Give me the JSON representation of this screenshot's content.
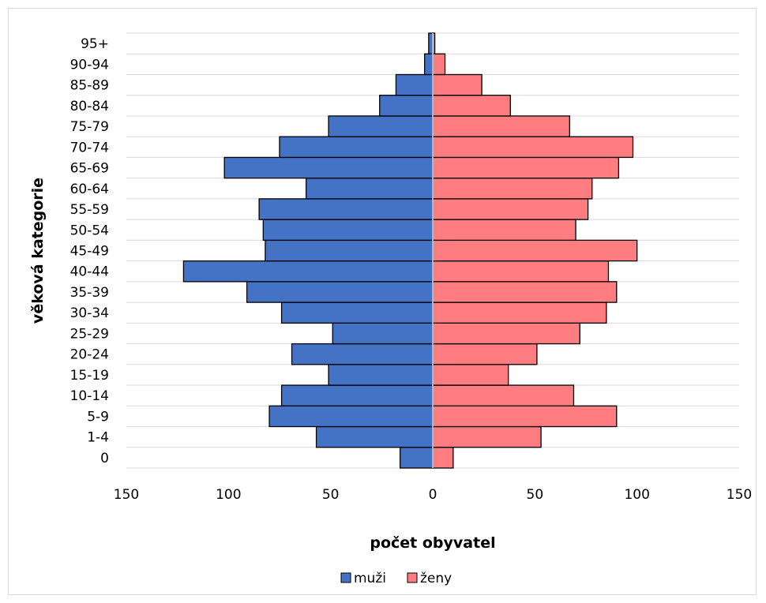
{
  "chart_data": {
    "type": "bar",
    "orientation": "horizontal",
    "title": "",
    "xlabel": "počet obyvatel",
    "ylabel": "věková kategorie",
    "xlim": [
      -150,
      150
    ],
    "x_ticks": [
      -150,
      -100,
      -50,
      0,
      50,
      100,
      150
    ],
    "x_tick_labels": [
      "150",
      "100",
      "50",
      "0",
      "50",
      "100",
      "150"
    ],
    "grid": true,
    "legend_position": "bottom",
    "categories": [
      "0",
      "1-4",
      "5-9",
      "10-14",
      "15-19",
      "20-24",
      "25-29",
      "30-34",
      "35-39",
      "40-44",
      "45-49",
      "50-54",
      "55-59",
      "60-64",
      "65-69",
      "70-74",
      "75-79",
      "80-84",
      "85-89",
      "90-94",
      "95+"
    ],
    "series": [
      {
        "name": "muži",
        "color": "#4472c4",
        "side": "left",
        "values": [
          16,
          57,
          80,
          74,
          51,
          69,
          49,
          74,
          91,
          122,
          82,
          83,
          85,
          62,
          102,
          75,
          51,
          26,
          18,
          4,
          2
        ]
      },
      {
        "name": "ženy",
        "color": "#ff7c80",
        "side": "right",
        "values": [
          10,
          53,
          90,
          69,
          37,
          51,
          72,
          85,
          90,
          86,
          100,
          70,
          76,
          78,
          91,
          98,
          67,
          38,
          24,
          6,
          1
        ]
      }
    ]
  }
}
